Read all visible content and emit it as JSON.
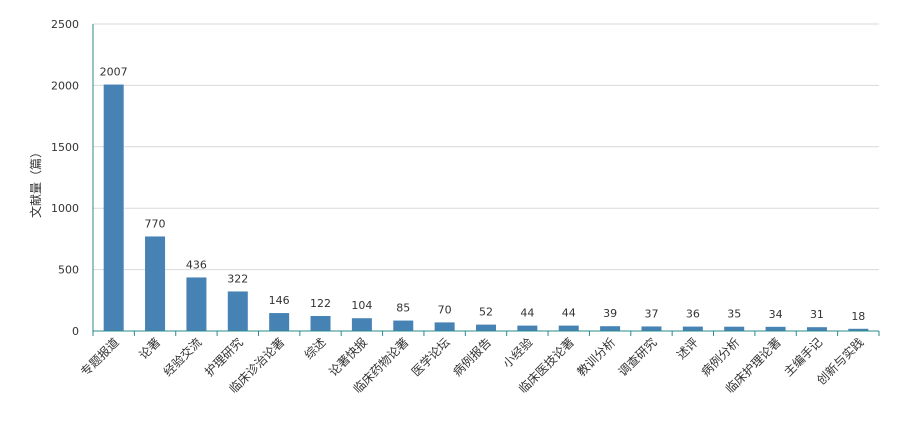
{
  "chart_data": {
    "type": "bar",
    "ylabel": "文献量（篇）",
    "ylim": [
      0,
      2500
    ],
    "yticks": [
      0,
      500,
      1000,
      1500,
      2000,
      2500
    ],
    "grid": true,
    "categories": [
      "专题报道",
      "论著",
      "经验交流",
      "护理研究",
      "临床诊治论著",
      "综述",
      "论著快报",
      "临床药物论著",
      "医学论坛",
      "病例报告",
      "小经验",
      "临床医技论著",
      "教训分析",
      "调查研究",
      "述评",
      "病例分析",
      "临床护理论著",
      "主编手记",
      "创新与实践"
    ],
    "values": [
      2007,
      770,
      436,
      322,
      146,
      122,
      104,
      85,
      70,
      52,
      44,
      44,
      39,
      37,
      36,
      35,
      34,
      31,
      18
    ],
    "colors": {
      "bar": "#4682b4",
      "axis": "#2a8a8a",
      "grid": "#d9d9d9"
    }
  }
}
